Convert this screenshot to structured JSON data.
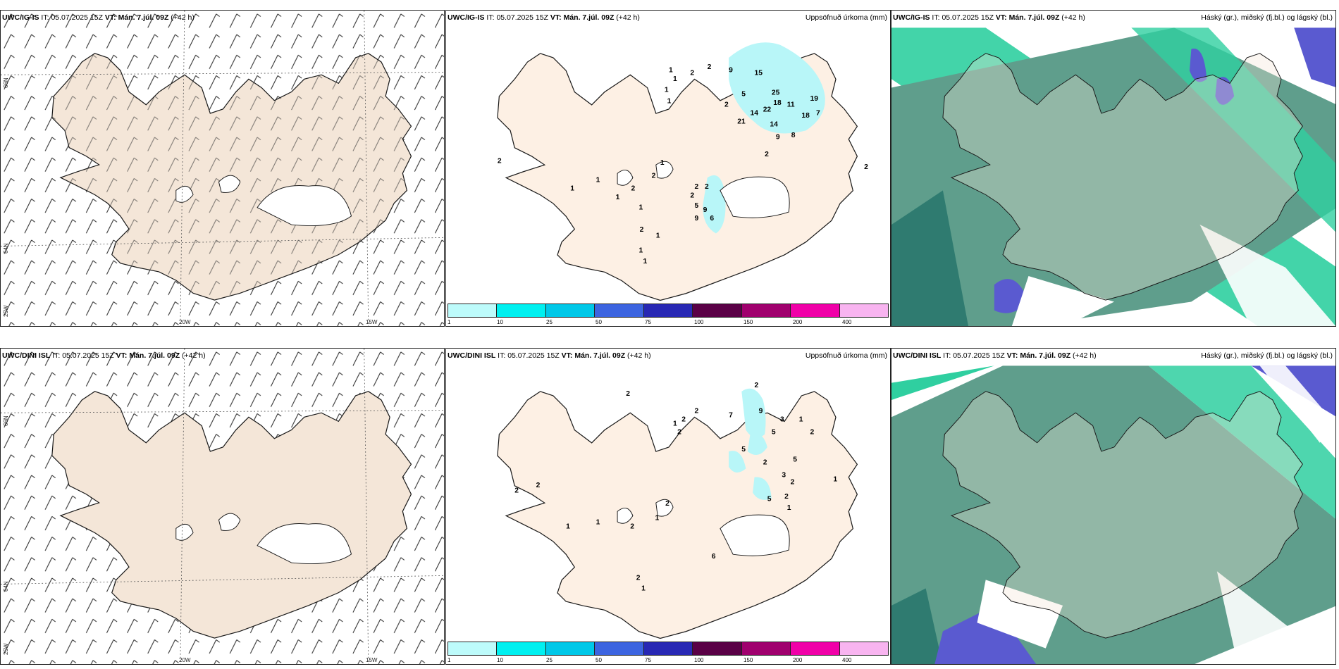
{
  "rows": [
    {
      "model": "UWC/IG-IS",
      "init_prefix": "IT:",
      "init": "05.07.2025 15Z",
      "valid_prefix": "VT:",
      "valid": "Mán. 7.júl. 09Z",
      "lead": "(+42 h)",
      "precip_numbers": [
        "15",
        "9",
        "2",
        "2",
        "1",
        "1",
        "1",
        "1",
        "5",
        "25",
        "2",
        "18",
        "19",
        "14",
        "11",
        "21",
        "22",
        "18",
        "7",
        "14",
        "9",
        "8",
        "2",
        "2",
        "1",
        "1",
        "1",
        "2",
        "2",
        "2",
        "2",
        "5",
        "9",
        "6",
        "9",
        "2",
        "1",
        "1",
        "1",
        "2",
        "1",
        "1",
        "2"
      ],
      "upper_precip_area": "north-east"
    },
    {
      "model": "UWC/DINI ISL",
      "init_prefix": "IT:",
      "init": "05.07.2025 15Z",
      "valid_prefix": "VT:",
      "valid": "Mán. 7.júl. 09Z",
      "lead": "(+42 h)",
      "precip_numbers": [
        "2",
        "9",
        "2",
        "2",
        "2",
        "1",
        "2",
        "7",
        "3",
        "5",
        "2",
        "5",
        "2",
        "5",
        "3",
        "2",
        "1",
        "1",
        "2",
        "1",
        "2",
        "1",
        "1",
        "1",
        "5",
        "6",
        "2",
        "1",
        "1",
        "2",
        "2"
      ],
      "upper_precip_area": "east"
    }
  ],
  "precip_title": "Uppsöfnuð úrkoma (mm)",
  "cloud_title": "Háský (gr.), miðský (fj.bl.) og lágský (bl.)",
  "wind_axis_labels": {
    "lat66": "66N",
    "lat64": "64N",
    "lon25": "25W",
    "lon20": "20W",
    "lon15": "15W"
  },
  "colorbar": {
    "ticks": [
      "1",
      "10",
      "25",
      "50",
      "75",
      "100",
      "150",
      "200",
      "400"
    ],
    "colors": [
      "#bdfbfb",
      "#00f0f0",
      "#00c8e8",
      "#3c64e0",
      "#2828b4",
      "#5a0046",
      "#a0006e",
      "#f000a8",
      "#f8b4f0"
    ]
  },
  "colors": {
    "land": "#f4e6d8",
    "land_precip_panel": "#fdf0e4",
    "precip_area": "#b8f6f8",
    "high_cloud": "#5f9e8c",
    "high_cloud_dark": "#2f7b70",
    "mid_cloud": "#2fcfa0",
    "low_cloud": "#5a5ad0",
    "coast": "#1a1a1a"
  }
}
